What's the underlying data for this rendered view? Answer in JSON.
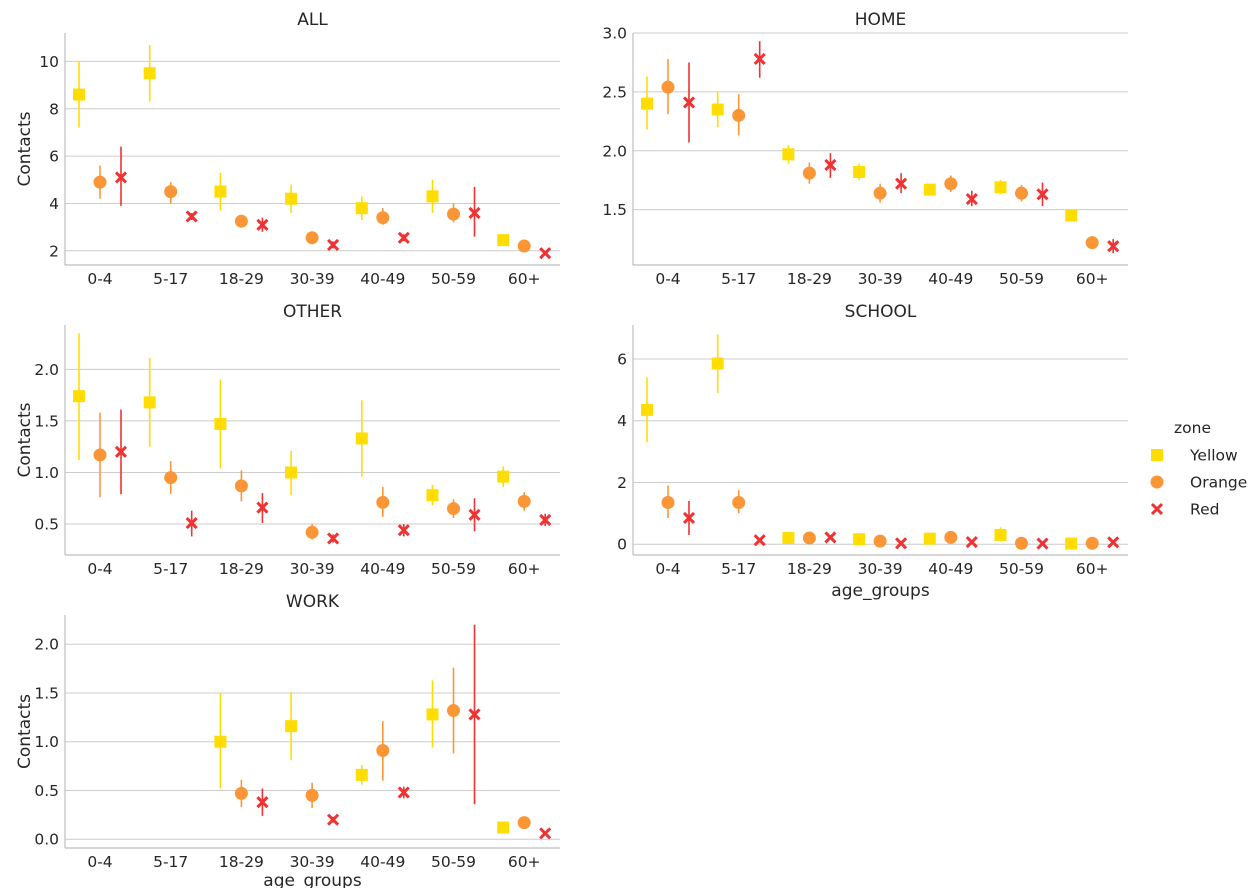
{
  "colors": {
    "Yellow": "#ffdd00",
    "Orange": "#fb9637",
    "Red": "#f03232",
    "grid": "#cccccc",
    "axis": "#bdbdbd"
  },
  "legend": {
    "title": "zone",
    "items": [
      "Yellow",
      "Orange",
      "Red"
    ],
    "markers": [
      "square",
      "circle",
      "cross"
    ]
  },
  "chart_data": [
    {
      "type": "scatter",
      "title": "ALL",
      "xlabel": "",
      "ylabel": "Contacts",
      "categories": [
        "0-4",
        "5-17",
        "18-29",
        "30-39",
        "40-49",
        "50-59",
        "60+"
      ],
      "yticks": [
        2,
        4,
        6,
        8,
        10
      ],
      "ylim": [
        1.4,
        11.2
      ],
      "grid": true,
      "series": [
        {
          "name": "Yellow",
          "values": [
            8.6,
            9.5,
            4.5,
            4.2,
            3.8,
            4.3,
            2.45
          ],
          "ci": [
            [
              7.2,
              10.0
            ],
            [
              8.3,
              10.7
            ],
            [
              3.7,
              5.3
            ],
            [
              3.6,
              4.8
            ],
            [
              3.3,
              4.3
            ],
            [
              3.6,
              5.0
            ],
            [
              2.2,
              2.7
            ]
          ]
        },
        {
          "name": "Orange",
          "values": [
            4.9,
            4.5,
            3.25,
            2.55,
            3.4,
            3.55,
            2.2
          ],
          "ci": [
            [
              4.2,
              5.6
            ],
            [
              4.0,
              4.9
            ],
            [
              3.0,
              3.5
            ],
            [
              2.3,
              2.8
            ],
            [
              3.1,
              3.8
            ],
            [
              3.2,
              4.0
            ],
            [
              2.0,
              2.4
            ]
          ]
        },
        {
          "name": "Red",
          "values": [
            5.1,
            3.45,
            3.1,
            2.25,
            2.55,
            3.6,
            1.9
          ],
          "ci": [
            [
              3.9,
              6.4
            ],
            [
              3.3,
              3.6
            ],
            [
              2.8,
              3.4
            ],
            [
              2.1,
              2.4
            ],
            [
              2.4,
              2.7
            ],
            [
              2.6,
              4.7
            ],
            [
              1.8,
              2.0
            ]
          ]
        }
      ]
    },
    {
      "type": "scatter",
      "title": "HOME",
      "xlabel": "",
      "ylabel": "",
      "categories": [
        "0-4",
        "5-17",
        "18-29",
        "30-39",
        "40-49",
        "50-59",
        "60+"
      ],
      "yticks": [
        1.5,
        2.0,
        2.5,
        3.0
      ],
      "ylim": [
        1.03,
        3.0
      ],
      "grid": true,
      "series": [
        {
          "name": "Yellow",
          "values": [
            2.4,
            2.35,
            1.97,
            1.82,
            1.67,
            1.69,
            1.45
          ],
          "ci": [
            [
              2.18,
              2.63
            ],
            [
              2.2,
              2.5
            ],
            [
              1.89,
              2.05
            ],
            [
              1.75,
              1.89
            ],
            [
              1.62,
              1.72
            ],
            [
              1.63,
              1.75
            ],
            [
              1.4,
              1.5
            ]
          ]
        },
        {
          "name": "Orange",
          "values": [
            2.54,
            2.3,
            1.81,
            1.64,
            1.72,
            1.64,
            1.22
          ],
          "ci": [
            [
              2.31,
              2.78
            ],
            [
              2.13,
              2.48
            ],
            [
              1.72,
              1.9
            ],
            [
              1.56,
              1.72
            ],
            [
              1.65,
              1.79
            ],
            [
              1.57,
              1.71
            ],
            [
              1.17,
              1.27
            ]
          ]
        },
        {
          "name": "Red",
          "values": [
            2.41,
            2.78,
            1.88,
            1.72,
            1.59,
            1.63,
            1.19
          ],
          "ci": [
            [
              2.07,
              2.75
            ],
            [
              2.62,
              2.93
            ],
            [
              1.77,
              1.98
            ],
            [
              1.64,
              1.81
            ],
            [
              1.53,
              1.66
            ],
            [
              1.53,
              1.73
            ],
            [
              1.13,
              1.25
            ]
          ]
        }
      ]
    },
    {
      "type": "scatter",
      "title": "OTHER",
      "xlabel": "",
      "ylabel": "Contacts",
      "categories": [
        "0-4",
        "5-17",
        "18-29",
        "30-39",
        "40-49",
        "50-59",
        "60+"
      ],
      "yticks": [
        0.5,
        1.0,
        1.5,
        2.0
      ],
      "ylim": [
        0.2,
        2.43
      ],
      "grid": true,
      "series": [
        {
          "name": "Yellow",
          "values": [
            1.74,
            1.68,
            1.47,
            1.0,
            1.33,
            0.78,
            0.96
          ],
          "ci": [
            [
              1.12,
              2.35
            ],
            [
              1.25,
              2.11
            ],
            [
              1.04,
              1.9
            ],
            [
              0.78,
              1.21
            ],
            [
              0.96,
              1.7
            ],
            [
              0.68,
              0.88
            ],
            [
              0.86,
              1.06
            ]
          ]
        },
        {
          "name": "Orange",
          "values": [
            1.17,
            0.95,
            0.87,
            0.42,
            0.71,
            0.65,
            0.72
          ],
          "ci": [
            [
              0.76,
              1.58
            ],
            [
              0.79,
              1.11
            ],
            [
              0.72,
              1.02
            ],
            [
              0.35,
              0.5
            ],
            [
              0.57,
              0.86
            ],
            [
              0.56,
              0.74
            ],
            [
              0.63,
              0.81
            ]
          ]
        },
        {
          "name": "Red",
          "values": [
            1.2,
            0.51,
            0.66,
            0.36,
            0.44,
            0.59,
            0.54
          ],
          "ci": [
            [
              0.79,
              1.61
            ],
            [
              0.38,
              0.63
            ],
            [
              0.51,
              0.8
            ],
            [
              0.32,
              0.4
            ],
            [
              0.38,
              0.5
            ],
            [
              0.43,
              0.75
            ],
            [
              0.48,
              0.6
            ]
          ]
        }
      ]
    },
    {
      "type": "scatter",
      "title": "SCHOOL",
      "xlabel": "age_groups",
      "ylabel": "",
      "categories": [
        "0-4",
        "5-17",
        "18-29",
        "30-39",
        "40-49",
        "50-59",
        "60+"
      ],
      "yticks": [
        0,
        2,
        4,
        6
      ],
      "ylim": [
        -0.35,
        7.1
      ],
      "grid": true,
      "series": [
        {
          "name": "Yellow",
          "values": [
            4.35,
            5.85,
            0.2,
            0.16,
            0.18,
            0.3,
            0.02
          ],
          "ci": [
            [
              3.3,
              5.4
            ],
            [
              4.9,
              6.8
            ],
            [
              0.14,
              0.26
            ],
            [
              0.1,
              0.22
            ],
            [
              0.12,
              0.24
            ],
            [
              0.1,
              0.55
            ],
            [
              0.0,
              0.05
            ]
          ]
        },
        {
          "name": "Orange",
          "values": [
            1.35,
            1.35,
            0.2,
            0.1,
            0.22,
            0.03,
            0.03
          ],
          "ci": [
            [
              0.85,
              1.9
            ],
            [
              1.0,
              1.75
            ],
            [
              0.15,
              0.25
            ],
            [
              0.06,
              0.14
            ],
            [
              0.17,
              0.27
            ],
            [
              0.0,
              0.06
            ],
            [
              0.0,
              0.06
            ]
          ]
        },
        {
          "name": "Red",
          "values": [
            0.85,
            0.13,
            0.22,
            0.03,
            0.07,
            0.02,
            0.06
          ],
          "ci": [
            [
              0.3,
              1.4
            ],
            [
              0.08,
              0.18
            ],
            [
              0.17,
              0.27
            ],
            [
              0.0,
              0.06
            ],
            [
              0.03,
              0.11
            ],
            [
              0.0,
              0.04
            ],
            [
              0.02,
              0.1
            ]
          ]
        }
      ]
    },
    {
      "type": "scatter",
      "title": "WORK",
      "xlabel": "age_groups",
      "ylabel": "Contacts",
      "categories": [
        "0-4",
        "5-17",
        "18-29",
        "30-39",
        "40-49",
        "50-59",
        "60+"
      ],
      "yticks": [
        0.0,
        0.5,
        1.0,
        1.5,
        2.0
      ],
      "ylim": [
        -0.09,
        2.3
      ],
      "grid": true,
      "series": [
        {
          "name": "Yellow",
          "values": [
            null,
            null,
            1.0,
            1.16,
            0.66,
            1.28,
            0.12
          ],
          "ci": [
            null,
            null,
            [
              0.52,
              1.5
            ],
            [
              0.81,
              1.51
            ],
            [
              0.56,
              0.76
            ],
            [
              0.94,
              1.63
            ],
            [
              0.09,
              0.15
            ]
          ]
        },
        {
          "name": "Orange",
          "values": [
            null,
            null,
            0.47,
            0.45,
            0.91,
            1.32,
            0.17
          ],
          "ci": [
            null,
            null,
            [
              0.33,
              0.61
            ],
            [
              0.32,
              0.58
            ],
            [
              0.6,
              1.21
            ],
            [
              0.88,
              1.76
            ],
            [
              0.12,
              0.22
            ]
          ]
        },
        {
          "name": "Red",
          "values": [
            null,
            null,
            0.38,
            0.2,
            0.48,
            1.28,
            0.06
          ],
          "ci": [
            null,
            null,
            [
              0.24,
              0.52
            ],
            [
              0.17,
              0.23
            ],
            [
              0.42,
              0.54
            ],
            [
              0.36,
              2.2
            ],
            [
              0.04,
              0.08
            ]
          ]
        }
      ]
    }
  ]
}
